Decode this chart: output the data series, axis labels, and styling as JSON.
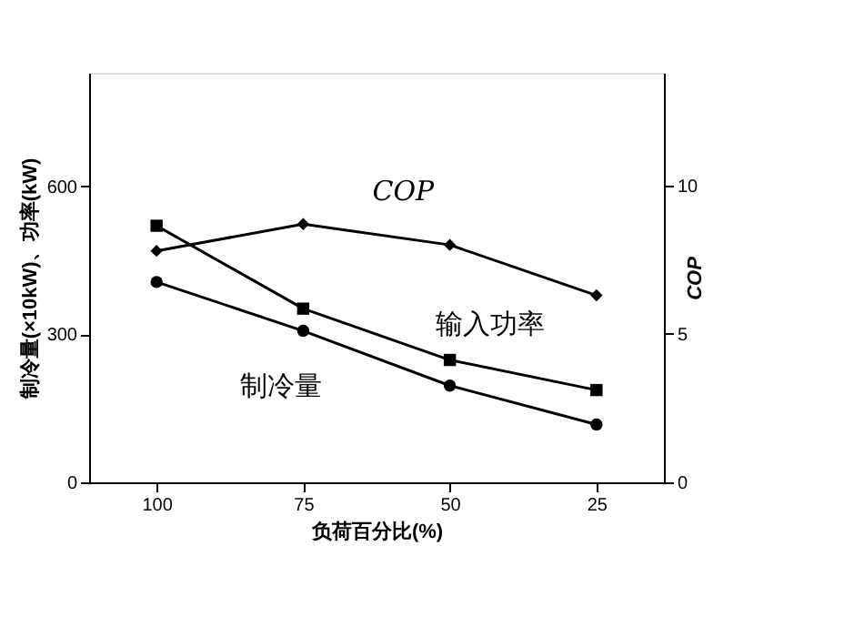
{
  "chart_data": {
    "type": "line",
    "xlabel": "负荷百分比(%)",
    "ylabel": "制冷量(×10kW)、功率(kW)",
    "y2label": "COP",
    "categories": [
      "100",
      "75",
      "50",
      "25"
    ],
    "series": [
      {
        "name": "制冷量",
        "color": "#000000",
        "marker": "circle",
        "values": [
          406,
          307,
          196,
          117
        ]
      },
      {
        "name": "输入功率",
        "color": "#000000",
        "marker": "square",
        "values": [
          520,
          352,
          248,
          187
        ]
      },
      {
        "name": "COP",
        "color": "#000000",
        "marker": "diamond",
        "axis": "y2",
        "values": [
          7.8,
          8.7,
          8.0,
          6.3
        ]
      }
    ],
    "ylim": [
      0,
      830
    ],
    "yticks": [
      0,
      300,
      600
    ],
    "y2lim": [
      0,
      13.8
    ],
    "y2ticks": [
      0,
      5,
      10
    ],
    "grid": false,
    "legend": false,
    "line_style": "solid"
  }
}
